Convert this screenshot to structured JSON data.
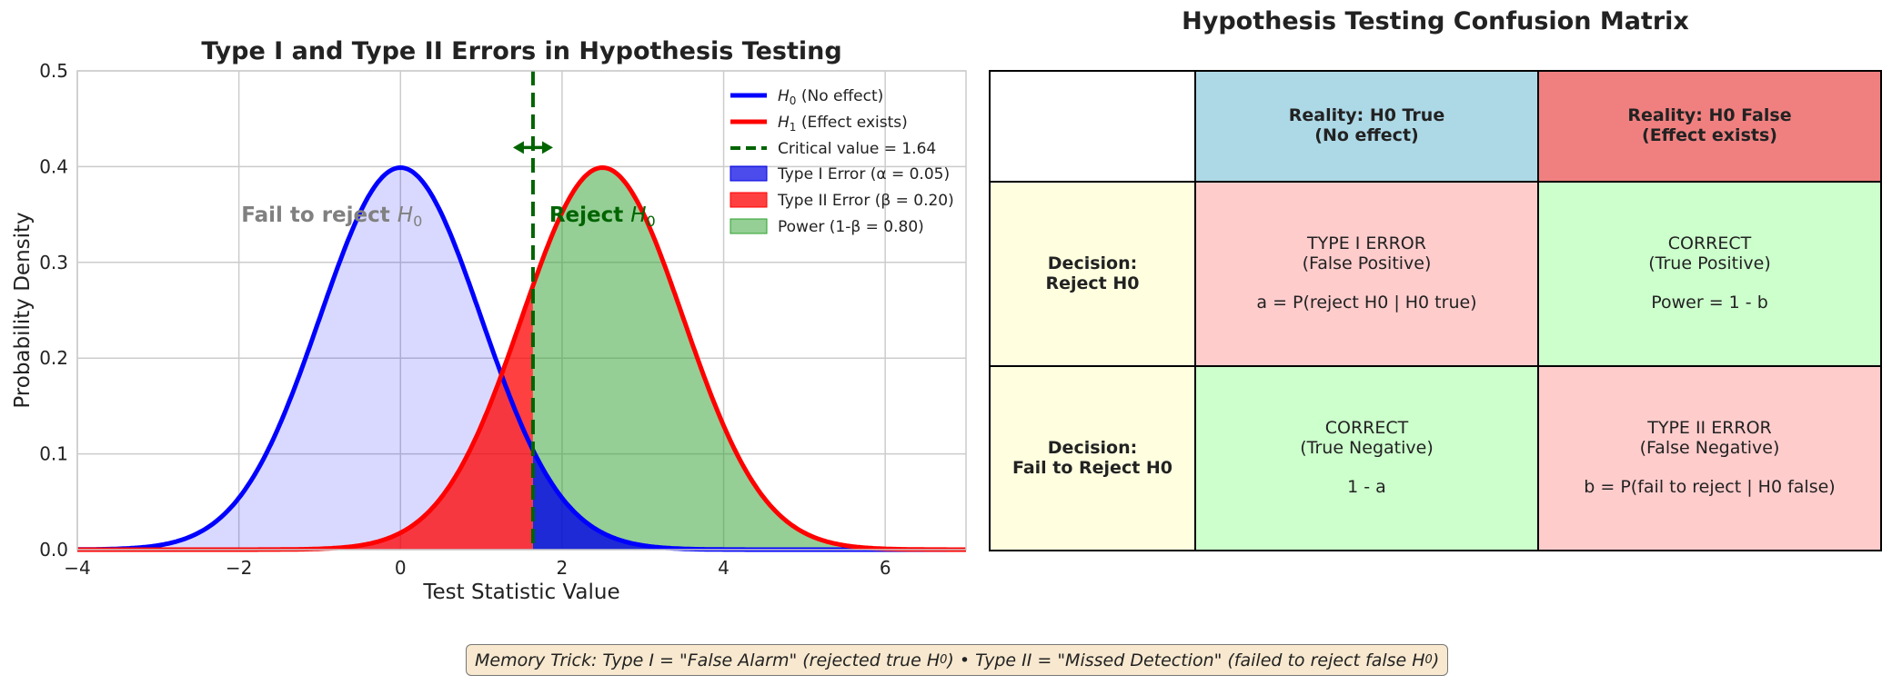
{
  "chart_data": {
    "type": "area",
    "title": "Type I and Type II Errors in Hypothesis Testing",
    "xlabel": "Test Statistic Value",
    "ylabel": "Probability Density",
    "xlim": [
      -4,
      7
    ],
    "ylim": [
      0,
      0.5
    ],
    "xticks": [
      -4,
      -2,
      0,
      2,
      4,
      6
    ],
    "xtick_labels": [
      "−4",
      "−2",
      "0",
      "2",
      "4",
      "6"
    ],
    "yticks": [
      0,
      0.1,
      0.2,
      0.3,
      0.4,
      0.5
    ],
    "ytick_labels": [
      "0.0",
      "0.1",
      "0.2",
      "0.3",
      "0.4",
      "0.5"
    ],
    "grid": true,
    "legend_position": "top-right",
    "series": [
      {
        "name": "H0 (No effect)",
        "legend_main": "H",
        "legend_sub": "0",
        "legend_rest": " (No effect)",
        "kind": "normal_pdf",
        "mean": 0,
        "sd": 1,
        "color": "#0000ff"
      },
      {
        "name": "H1 (Effect exists)",
        "legend_main": "H",
        "legend_sub": "1",
        "legend_rest": " (Effect exists)",
        "kind": "normal_pdf",
        "mean": 2.5,
        "sd": 1,
        "color": "#ff0000"
      }
    ],
    "critical_value": {
      "x": 1.64,
      "label": "Critical value = 1.64",
      "color": "#006400"
    },
    "areas": [
      {
        "name": "Type I Error (α = 0.05)",
        "color": "#0000e6"
      },
      {
        "name": "Type II Error (β = 0.20)",
        "color": "#ff0000"
      },
      {
        "name": "Power (1-β = 0.80)",
        "color": "#2ca02c"
      }
    ],
    "annotations": [
      {
        "text_main": "Fail to reject ",
        "text_math": "H",
        "text_sub": "0",
        "x": -0.85,
        "y": 0.35,
        "color": "#808080"
      },
      {
        "text_main": "Reject ",
        "text_math": "H",
        "text_sub": "0",
        "x": 2.5,
        "y": 0.35,
        "color": "#006400"
      }
    ]
  },
  "matrix": {
    "title": "Hypothesis Testing Confusion Matrix",
    "col_headers": [
      {
        "text": "Reality: H0 True\n(No effect)",
        "color": "#add8e6"
      },
      {
        "text": "Reality: H0 False\n(Effect exists)",
        "color": "#f08080"
      }
    ],
    "rows": [
      {
        "label": "Decision:\nReject H0",
        "cells": [
          {
            "text": "TYPE I ERROR\n(False Positive)\n\na = P(reject H0 | H0 true)",
            "color": "#ffcccc"
          },
          {
            "text": "CORRECT\n(True Positive)\n\nPower = 1 - b",
            "color": "#ccffcc"
          }
        ]
      },
      {
        "label": "Decision:\nFail to Reject H0",
        "cells": [
          {
            "text": "CORRECT\n(True Negative)\n\n1 - a",
            "color": "#ccffcc"
          },
          {
            "text": "TYPE II ERROR\n(False Negative)\n\nb = P(fail to reject | H0 false)",
            "color": "#ffcccc"
          }
        ]
      }
    ]
  },
  "memory_trick": {
    "part1": "Memory Trick: Type I = \"False Alarm\" (rejected true H",
    "sub1": "0",
    "part2": ")  •  Type II = \"Missed Detection\" (failed to reject false H",
    "sub2": "0",
    "part3": ")"
  }
}
